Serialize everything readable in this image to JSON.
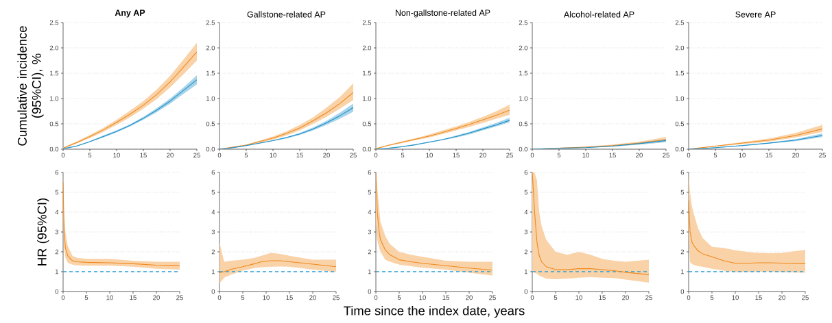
{
  "chart_data": [
    {
      "type": "line",
      "title": "Any AP",
      "ylabel": "Cumulative incidence (95%CI), %",
      "xlim": [
        0,
        25
      ],
      "xticks": [
        0,
        5,
        10,
        15,
        20,
        25
      ],
      "ylim": [
        0,
        2.5
      ],
      "yticks": [
        {
          "value": 0,
          "label": "0.0"
        },
        0.5,
        {
          "value": 1,
          "label": "1.0"
        },
        1.5,
        {
          "value": 2,
          "label": "2.0"
        },
        2.5
      ],
      "grid": "y",
      "series": [
        {
          "color": "#f0891a",
          "x": [
            0,
            2.5,
            5,
            7.5,
            10,
            12.5,
            15,
            17.5,
            20,
            22.5,
            25
          ],
          "values": [
            0.02,
            0.13,
            0.25,
            0.38,
            0.53,
            0.69,
            0.87,
            1.08,
            1.33,
            1.62,
            1.92
          ],
          "lower": [
            0.01,
            0.11,
            0.22,
            0.34,
            0.48,
            0.63,
            0.8,
            0.99,
            1.22,
            1.48,
            1.75
          ],
          "upper": [
            0.03,
            0.15,
            0.28,
            0.42,
            0.58,
            0.76,
            0.95,
            1.18,
            1.45,
            1.77,
            2.1
          ]
        },
        {
          "color": "#1a8fc9",
          "x": [
            0,
            2.5,
            5,
            7.5,
            10,
            12.5,
            15,
            17.5,
            20,
            22.5,
            25
          ],
          "values": [
            0.01,
            0.06,
            0.15,
            0.25,
            0.35,
            0.47,
            0.61,
            0.77,
            0.95,
            1.16,
            1.37
          ],
          "lower": [
            0.0,
            0.05,
            0.14,
            0.23,
            0.33,
            0.45,
            0.58,
            0.73,
            0.9,
            1.09,
            1.28
          ],
          "upper": [
            0.02,
            0.07,
            0.16,
            0.27,
            0.37,
            0.49,
            0.64,
            0.81,
            1.0,
            1.22,
            1.46
          ]
        }
      ]
    },
    {
      "type": "line",
      "title": "Gallstone-related AP",
      "xlim": [
        0,
        25
      ],
      "xticks": [
        0,
        5,
        10,
        15,
        20,
        25
      ],
      "ylim": [
        0,
        2.5
      ],
      "yticks": [
        {
          "value": 0,
          "label": "0.0"
        },
        0.5,
        {
          "value": 1,
          "label": "1.0"
        },
        1.5,
        {
          "value": 2,
          "label": "2.0"
        },
        2.5
      ],
      "grid": "y",
      "series": [
        {
          "color": "#f0891a",
          "x": [
            0,
            2.5,
            5,
            7.5,
            10,
            12.5,
            15,
            17.5,
            20,
            22.5,
            25
          ],
          "values": [
            0.0,
            0.04,
            0.08,
            0.15,
            0.22,
            0.31,
            0.42,
            0.56,
            0.72,
            0.9,
            1.12
          ],
          "lower": [
            0.0,
            0.03,
            0.07,
            0.13,
            0.19,
            0.27,
            0.37,
            0.5,
            0.64,
            0.8,
            0.97
          ],
          "upper": [
            0.0,
            0.05,
            0.09,
            0.17,
            0.25,
            0.35,
            0.48,
            0.63,
            0.82,
            1.03,
            1.3
          ]
        },
        {
          "color": "#1a8fc9",
          "x": [
            0,
            2.5,
            5,
            7.5,
            10,
            12.5,
            15,
            17.5,
            20,
            22.5,
            25
          ],
          "values": [
            0.0,
            0.03,
            0.07,
            0.12,
            0.17,
            0.23,
            0.3,
            0.4,
            0.52,
            0.66,
            0.82
          ],
          "lower": [
            0.0,
            0.02,
            0.06,
            0.11,
            0.16,
            0.21,
            0.28,
            0.37,
            0.48,
            0.6,
            0.74
          ],
          "upper": [
            0.0,
            0.04,
            0.08,
            0.13,
            0.18,
            0.24,
            0.32,
            0.43,
            0.56,
            0.72,
            0.9
          ]
        }
      ]
    },
    {
      "type": "line",
      "title": "Non-gallstone-related AP",
      "xlim": [
        0,
        25
      ],
      "xticks": [
        0,
        5,
        10,
        15,
        20,
        25
      ],
      "ylim": [
        0,
        2.5
      ],
      "yticks": [
        {
          "value": 0,
          "label": "0.0"
        },
        0.5,
        {
          "value": 1,
          "label": "1.0"
        },
        1.5,
        {
          "value": 2,
          "label": "2.0"
        },
        2.5
      ],
      "grid": "y",
      "series": [
        {
          "color": "#f0891a",
          "x": [
            0,
            2.5,
            5,
            7.5,
            10,
            12.5,
            15,
            17.5,
            20,
            22.5,
            25
          ],
          "values": [
            0.01,
            0.08,
            0.14,
            0.2,
            0.26,
            0.33,
            0.41,
            0.49,
            0.58,
            0.67,
            0.77
          ],
          "lower": [
            0.0,
            0.07,
            0.12,
            0.18,
            0.23,
            0.3,
            0.37,
            0.44,
            0.52,
            0.6,
            0.68
          ],
          "upper": [
            0.02,
            0.09,
            0.16,
            0.22,
            0.29,
            0.37,
            0.45,
            0.54,
            0.64,
            0.75,
            0.88
          ]
        },
        {
          "color": "#1a8fc9",
          "x": [
            0,
            2.5,
            5,
            7.5,
            10,
            12.5,
            15,
            17.5,
            20,
            22.5,
            25
          ],
          "values": [
            0.0,
            0.02,
            0.05,
            0.09,
            0.14,
            0.19,
            0.25,
            0.32,
            0.4,
            0.48,
            0.57
          ],
          "lower": [
            0.0,
            0.01,
            0.04,
            0.08,
            0.13,
            0.18,
            0.23,
            0.29,
            0.37,
            0.45,
            0.53
          ],
          "upper": [
            0.0,
            0.03,
            0.06,
            0.1,
            0.15,
            0.2,
            0.27,
            0.34,
            0.43,
            0.52,
            0.62
          ]
        }
      ]
    },
    {
      "type": "line",
      "title": "Alcohol-related AP",
      "xlim": [
        0,
        25
      ],
      "xticks": [
        0,
        5,
        10,
        15,
        20,
        25
      ],
      "ylim": [
        0,
        2.5
      ],
      "yticks": [
        {
          "value": 0,
          "label": "0.0"
        },
        0.5,
        {
          "value": 1,
          "label": "1.0"
        },
        1.5,
        {
          "value": 2,
          "label": "2.0"
        },
        2.5
      ],
      "grid": "y",
      "series": [
        {
          "color": "#f0891a",
          "x": [
            0,
            5,
            10,
            15,
            20,
            25
          ],
          "values": [
            0.0,
            0.02,
            0.04,
            0.07,
            0.12,
            0.19
          ],
          "lower": [
            0.0,
            0.01,
            0.03,
            0.05,
            0.09,
            0.14
          ],
          "upper": [
            0.0,
            0.03,
            0.05,
            0.09,
            0.15,
            0.24
          ]
        },
        {
          "color": "#1a8fc9",
          "x": [
            0,
            5,
            10,
            15,
            20,
            25
          ],
          "values": [
            0.0,
            0.02,
            0.03,
            0.06,
            0.11,
            0.17
          ],
          "lower": [
            0.0,
            0.015,
            0.03,
            0.05,
            0.09,
            0.14
          ],
          "upper": [
            0.0,
            0.025,
            0.04,
            0.07,
            0.13,
            0.2
          ]
        }
      ]
    },
    {
      "type": "line",
      "title": "Severe AP",
      "xlim": [
        0,
        25
      ],
      "xticks": [
        0,
        5,
        10,
        15,
        20,
        25
      ],
      "ylim": [
        0,
        2.5
      ],
      "yticks": [
        {
          "value": 0,
          "label": "0.0"
        },
        0.5,
        {
          "value": 1,
          "label": "1.0"
        },
        1.5,
        {
          "value": 2,
          "label": "2.0"
        },
        2.5
      ],
      "grid": "y",
      "series": [
        {
          "color": "#f0891a",
          "x": [
            0,
            5,
            10,
            15,
            20,
            25
          ],
          "values": [
            0.0,
            0.06,
            0.12,
            0.18,
            0.27,
            0.4
          ],
          "lower": [
            0.0,
            0.05,
            0.1,
            0.15,
            0.23,
            0.34
          ],
          "upper": [
            0.0,
            0.07,
            0.14,
            0.21,
            0.32,
            0.48
          ]
        },
        {
          "color": "#1a8fc9",
          "x": [
            0,
            5,
            10,
            15,
            20,
            25
          ],
          "values": [
            0.0,
            0.03,
            0.07,
            0.12,
            0.18,
            0.27
          ],
          "lower": [
            0.0,
            0.025,
            0.06,
            0.11,
            0.16,
            0.24
          ],
          "upper": [
            0.0,
            0.035,
            0.08,
            0.13,
            0.2,
            0.31
          ]
        }
      ]
    },
    {
      "type": "line",
      "ylabel": "HR (95%CI)",
      "xlim": [
        0,
        25
      ],
      "xticks": [
        0,
        5,
        10,
        15,
        20,
        25
      ],
      "ylim": [
        0,
        6
      ],
      "yticks": [
        0,
        1,
        2,
        3,
        4,
        5,
        6
      ],
      "grid": "y",
      "ref_lines": [
        {
          "axis": "y",
          "value": 1,
          "color": "#2aa0d8",
          "line_style": "dashed"
        }
      ],
      "series": [
        {
          "color": "#f0891a",
          "x": [
            0,
            0.2,
            0.5,
            1,
            2,
            3,
            5,
            10,
            15,
            20,
            25
          ],
          "values": [
            5.5,
            3.0,
            2.2,
            1.8,
            1.55,
            1.5,
            1.47,
            1.45,
            1.4,
            1.33,
            1.3
          ],
          "lower": [
            4.5,
            2.2,
            1.7,
            1.45,
            1.35,
            1.32,
            1.3,
            1.3,
            1.25,
            1.15,
            1.1
          ],
          "upper": [
            6,
            4.0,
            3.0,
            2.3,
            1.8,
            1.7,
            1.65,
            1.65,
            1.55,
            1.5,
            1.5
          ]
        }
      ]
    },
    {
      "type": "line",
      "xlim": [
        0,
        25
      ],
      "xticks": [
        0,
        5,
        10,
        15,
        20,
        25
      ],
      "ylim": [
        0,
        6
      ],
      "yticks": [
        0,
        1,
        2,
        3,
        4,
        5,
        6
      ],
      "grid": "y",
      "ref_lines": [
        {
          "axis": "y",
          "value": 1,
          "color": "#2aa0d8",
          "line_style": "dashed"
        }
      ],
      "series": [
        {
          "color": "#f0891a",
          "x": [
            0,
            1,
            2.5,
            5,
            7.5,
            9,
            11,
            13,
            15,
            20,
            25
          ],
          "values": [
            0.95,
            1.0,
            1.12,
            1.25,
            1.4,
            1.5,
            1.55,
            1.55,
            1.5,
            1.38,
            1.25
          ],
          "lower": [
            0.4,
            0.7,
            0.85,
            1.05,
            1.18,
            1.22,
            1.25,
            1.26,
            1.25,
            1.1,
            0.98
          ],
          "upper": [
            2.5,
            1.5,
            1.55,
            1.6,
            1.7,
            1.8,
            1.95,
            1.9,
            1.8,
            1.6,
            1.6
          ]
        }
      ]
    },
    {
      "type": "line",
      "xlabel": "Time since the index date, years",
      "xlim": [
        0,
        25
      ],
      "xticks": [
        0,
        5,
        10,
        15,
        20,
        25
      ],
      "ylim": [
        0,
        6
      ],
      "yticks": [
        0,
        1,
        2,
        3,
        4,
        5,
        6
      ],
      "grid": "y",
      "ref_lines": [
        {
          "axis": "y",
          "value": 1,
          "color": "#2aa0d8",
          "line_style": "dashed"
        }
      ],
      "series": [
        {
          "color": "#f0891a",
          "x": [
            0,
            0.3,
            0.7,
            1,
            2,
            3,
            5,
            7.5,
            10,
            15,
            20,
            25
          ],
          "values": [
            6,
            4.0,
            3.0,
            2.6,
            2.1,
            1.85,
            1.6,
            1.5,
            1.42,
            1.3,
            1.18,
            1.08
          ],
          "lower": [
            3.5,
            2.6,
            2.2,
            2.0,
            1.6,
            1.5,
            1.35,
            1.28,
            1.2,
            1.1,
            0.95,
            0.8
          ],
          "upper": [
            6,
            5.2,
            4.2,
            3.5,
            2.8,
            2.4,
            2.0,
            1.85,
            1.75,
            1.55,
            1.5,
            1.5
          ]
        }
      ]
    },
    {
      "type": "line",
      "xlim": [
        0,
        25
      ],
      "xticks": [
        0,
        5,
        10,
        15,
        20,
        25
      ],
      "ylim": [
        0,
        6
      ],
      "yticks": [
        0,
        1,
        2,
        3,
        4,
        5,
        6
      ],
      "grid": "y",
      "ref_lines": [
        {
          "axis": "y",
          "value": 1,
          "color": "#2aa0d8",
          "line_style": "dashed"
        }
      ],
      "series": [
        {
          "color": "#f0891a",
          "x": [
            0,
            0.5,
            1,
            1.5,
            2,
            3,
            5,
            7.5,
            10,
            12.5,
            15,
            17.5,
            20,
            25
          ],
          "values": [
            6,
            4.0,
            2.5,
            1.8,
            1.5,
            1.25,
            1.1,
            1.1,
            1.15,
            1.15,
            1.1,
            1.05,
            0.97,
            0.85
          ],
          "lower": [
            1.0,
            0.95,
            0.9,
            0.8,
            0.75,
            0.65,
            0.62,
            0.65,
            0.7,
            0.72,
            0.7,
            0.68,
            0.6,
            0.45
          ],
          "upper": [
            6,
            6,
            5.6,
            4.0,
            3.3,
            2.6,
            2.0,
            1.85,
            2.0,
            1.85,
            1.65,
            1.55,
            1.5,
            1.6
          ]
        }
      ]
    },
    {
      "type": "line",
      "xlim": [
        0,
        25
      ],
      "xticks": [
        0,
        5,
        10,
        15,
        20,
        25
      ],
      "ylim": [
        0,
        6
      ],
      "yticks": [
        0,
        1,
        2,
        3,
        4,
        5,
        6
      ],
      "grid": "y",
      "ref_lines": [
        {
          "axis": "y",
          "value": 1,
          "color": "#2aa0d8",
          "line_style": "dashed"
        }
      ],
      "series": [
        {
          "color": "#f0891a",
          "x": [
            0,
            0.3,
            0.7,
            1,
            2,
            3,
            5,
            7.5,
            10,
            12.5,
            15,
            17.5,
            20,
            25
          ],
          "values": [
            4.6,
            3.0,
            2.5,
            2.35,
            2.05,
            1.9,
            1.75,
            1.55,
            1.42,
            1.42,
            1.45,
            1.45,
            1.43,
            1.4
          ],
          "lower": [
            3.0,
            1.5,
            1.38,
            1.35,
            1.28,
            1.25,
            1.15,
            1.05,
            0.97,
            0.98,
            1.0,
            1.0,
            0.97,
            0.95
          ],
          "upper": [
            6,
            5.0,
            4.3,
            4.0,
            3.2,
            2.7,
            2.25,
            2.2,
            2.08,
            2.0,
            1.95,
            1.93,
            1.95,
            2.1
          ]
        }
      ]
    }
  ]
}
